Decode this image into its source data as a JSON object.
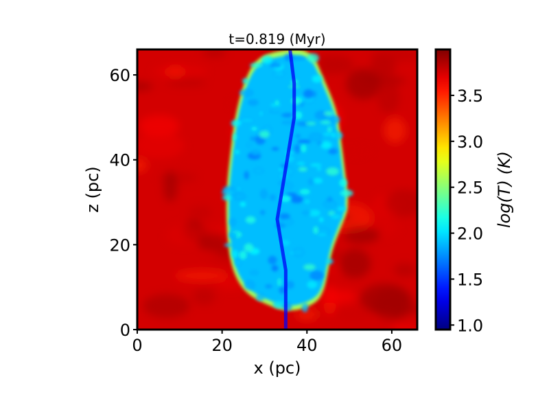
{
  "chart_data": {
    "type": "heatmap",
    "title": "t=0.819 (Myr)",
    "xlabel": "x (pc)",
    "ylabel": "z (pc)",
    "xlim": [
      0,
      66
    ],
    "ylim": [
      0,
      66
    ],
    "x_ticks": [
      0,
      20,
      40,
      60
    ],
    "y_ticks": [
      0,
      20,
      40,
      60
    ],
    "colorbar": {
      "label": "log(T) (K)",
      "colormap": "jet",
      "range": [
        0.95,
        4.0
      ],
      "ticks": [
        "1.0",
        "1.5",
        "2.0",
        "2.5",
        "3.0",
        "3.5"
      ]
    },
    "field": {
      "quantity": "log(T)",
      "background_value": 3.75,
      "cloud_core_value": 1.3,
      "cloud_body_value": 1.9,
      "cloud_edge_value": 2.6,
      "cloud_outline_pc": [
        [
          34,
          66
        ],
        [
          41,
          66
        ],
        [
          44,
          59
        ],
        [
          47,
          52
        ],
        [
          48,
          45
        ],
        [
          49,
          37
        ],
        [
          50,
          29
        ],
        [
          48,
          24
        ],
        [
          46,
          19
        ],
        [
          45,
          14
        ],
        [
          44,
          9
        ],
        [
          42,
          6
        ],
        [
          36,
          4
        ],
        [
          30,
          6
        ],
        [
          25,
          9
        ],
        [
          22,
          15
        ],
        [
          21,
          24
        ],
        [
          21,
          33
        ],
        [
          22,
          42
        ],
        [
          23,
          50
        ],
        [
          25,
          58
        ],
        [
          28,
          64
        ]
      ],
      "filament_pc": [
        [
          36,
          66
        ],
        [
          37,
          58
        ],
        [
          37,
          50
        ],
        [
          36,
          44
        ],
        [
          35,
          38
        ],
        [
          34,
          32
        ],
        [
          33,
          26
        ],
        [
          34,
          20
        ],
        [
          35,
          14
        ],
        [
          35,
          8
        ],
        [
          35,
          0
        ]
      ]
    }
  }
}
